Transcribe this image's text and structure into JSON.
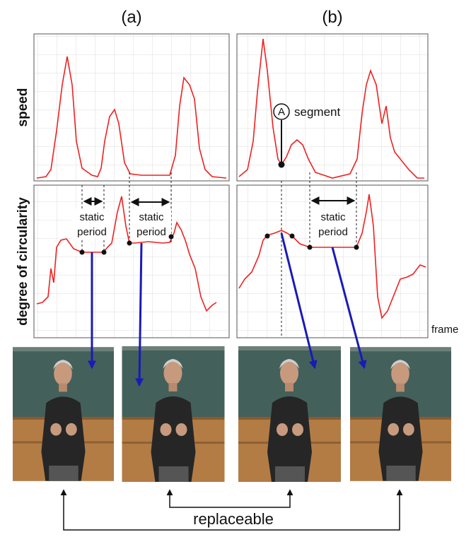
{
  "header": {
    "panel_a": "(a)",
    "panel_b": "(b)"
  },
  "axes": {
    "speed": "speed",
    "circularity": "degree of circularity",
    "frame": "frame"
  },
  "annotations": {
    "marker": "A",
    "segment": "segment",
    "static_periods": [
      [
        "static",
        "period"
      ],
      [
        "static",
        "period"
      ],
      [
        "static",
        "period"
      ]
    ]
  },
  "footer": {
    "replaceable": "replaceable"
  }
}
